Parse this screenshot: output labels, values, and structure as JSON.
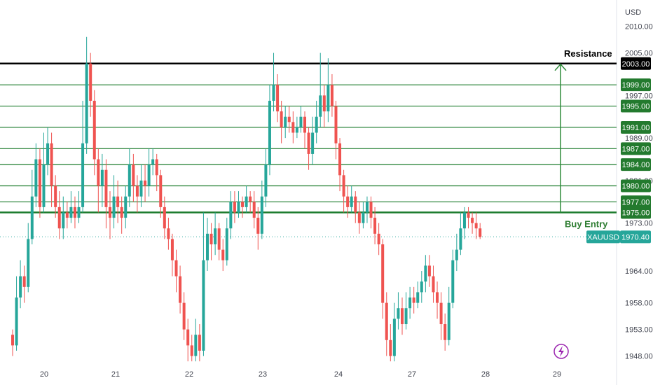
{
  "chart_data": {
    "type": "candlestick",
    "symbol": "XAUUSD",
    "currency": "USD",
    "last_price": "1970.40",
    "ylim": [
      1946.5,
      2011
    ],
    "y_ticks": [
      "2010.00",
      "2005.00",
      "1997.00",
      "1989.00",
      "1981.00",
      "1973.00",
      "1964.00",
      "1958.00",
      "1953.00",
      "1948.00"
    ],
    "x_ticks": [
      "20",
      "21",
      "22",
      "23",
      "24",
      "27",
      "28",
      "29"
    ],
    "resistance": {
      "label": "Resistance",
      "price": "2003.00",
      "value": 2003
    },
    "buy_entry": {
      "label": "Buy Entry",
      "price": "1975.00",
      "value": 1975
    },
    "target_levels": [
      {
        "price": "1999.00",
        "value": 1999
      },
      {
        "price": "1995.00",
        "value": 1995
      },
      {
        "price": "1991.00",
        "value": 1991
      },
      {
        "price": "1987.00",
        "value": 1987
      },
      {
        "price": "1984.00",
        "value": 1984
      },
      {
        "price": "1980.00",
        "value": 1980
      },
      {
        "price": "1977.00",
        "value": 1977
      }
    ],
    "colors": {
      "up": "#26a69a",
      "down": "#ef5350",
      "level": "#1b7b2c",
      "level_label": "#237a2e",
      "resistance": "#000000",
      "price_label": "#26a69a",
      "arrow": "#2e8b3a"
    },
    "candles": [
      [
        1952,
        1950,
        1953,
        1948
      ],
      [
        1950,
        1959,
        1963,
        1949
      ],
      [
        1959,
        1963,
        1966,
        1957
      ],
      [
        1963,
        1961,
        1965,
        1958
      ],
      [
        1961,
        1970,
        1973,
        1960
      ],
      [
        1970,
        1978,
        1983,
        1969
      ],
      [
        1978,
        1985,
        1988,
        1976
      ],
      [
        1985,
        1976,
        1987,
        1974
      ],
      [
        1976,
        1984,
        1990,
        1975
      ],
      [
        1984,
        1988,
        1991,
        1982
      ],
      [
        1988,
        1980,
        1990,
        1976
      ],
      [
        1980,
        1976,
        1982,
        1974
      ],
      [
        1976,
        1972,
        1979,
        1970
      ],
      [
        1972,
        1975,
        1978,
        1970
      ],
      [
        1975,
        1974,
        1977,
        1972
      ],
      [
        1974,
        1976,
        1979,
        1973
      ],
      [
        1976,
        1974,
        1978,
        1972
      ],
      [
        1974,
        1976,
        1979,
        1973
      ],
      [
        1976,
        1988,
        1996,
        1975
      ],
      [
        1988,
        2003,
        2008,
        1986
      ],
      [
        2003,
        1996,
        2005,
        1993
      ],
      [
        1996,
        1985,
        1998,
        1982
      ],
      [
        1985,
        1980,
        1987,
        1975
      ],
      [
        1980,
        1983,
        1986,
        1976
      ],
      [
        1983,
        1976,
        1985,
        1972
      ],
      [
        1976,
        1974,
        1979,
        1970
      ],
      [
        1974,
        1978,
        1982,
        1972
      ],
      [
        1978,
        1976,
        1981,
        1973
      ],
      [
        1976,
        1974,
        1978,
        1971
      ],
      [
        1974,
        1978,
        1980,
        1972
      ],
      [
        1978,
        1984,
        1987,
        1976
      ],
      [
        1984,
        1980,
        1986,
        1977
      ],
      [
        1980,
        1978,
        1982,
        1975
      ],
      [
        1978,
        1981,
        1984,
        1976
      ],
      [
        1981,
        1980,
        1984,
        1977
      ],
      [
        1980,
        1984,
        1987,
        1978
      ],
      [
        1984,
        1985,
        1987,
        1982
      ],
      [
        1985,
        1982,
        1986,
        1979
      ],
      [
        1982,
        1976,
        1983,
        1974
      ],
      [
        1976,
        1972,
        1978,
        1970
      ],
      [
        1972,
        1970,
        1974,
        1968
      ],
      [
        1970,
        1966,
        1971,
        1963
      ],
      [
        1966,
        1963,
        1968,
        1960
      ],
      [
        1963,
        1958,
        1965,
        1956
      ],
      [
        1958,
        1953,
        1960,
        1951
      ],
      [
        1953,
        1950,
        1955,
        1947
      ],
      [
        1950,
        1948,
        1952,
        1947
      ],
      [
        1948,
        1952,
        1955,
        1947
      ],
      [
        1952,
        1949,
        1954,
        1947
      ],
      [
        1949,
        1966,
        1975,
        1948
      ],
      [
        1966,
        1971,
        1974,
        1964
      ],
      [
        1971,
        1969,
        1973,
        1966
      ],
      [
        1969,
        1972,
        1975,
        1967
      ],
      [
        1972,
        1968,
        1973,
        1966
      ],
      [
        1968,
        1966,
        1970,
        1964
      ],
      [
        1966,
        1972,
        1974,
        1965
      ],
      [
        1972,
        1977,
        1979,
        1970
      ],
      [
        1977,
        1975,
        1979,
        1973
      ],
      [
        1975,
        1977,
        1979,
        1974
      ],
      [
        1977,
        1976,
        1978,
        1974
      ],
      [
        1976,
        1978,
        1980,
        1975
      ],
      [
        1978,
        1977,
        1979,
        1975
      ],
      [
        1977,
        1974,
        1979,
        1972
      ],
      [
        1974,
        1971,
        1976,
        1968
      ],
      [
        1971,
        1978,
        1981,
        1970
      ],
      [
        1978,
        1984,
        1987,
        1976
      ],
      [
        1984,
        1996,
        1999,
        1982
      ],
      [
        1996,
        1999,
        2005,
        1994
      ],
      [
        1999,
        1994,
        2001,
        1992
      ],
      [
        1994,
        1991,
        1996,
        1988
      ],
      [
        1991,
        1993,
        1995,
        1989
      ],
      [
        1993,
        1992,
        1995,
        1990
      ],
      [
        1992,
        1990,
        1994,
        1988
      ],
      [
        1990,
        1991,
        1993,
        1989
      ],
      [
        1991,
        1993,
        1995,
        1990
      ],
      [
        1993,
        1990,
        1994,
        1987
      ],
      [
        1990,
        1986,
        1991,
        1983
      ],
      [
        1986,
        1990,
        1993,
        1984
      ],
      [
        1990,
        1993,
        1996,
        1988
      ],
      [
        1993,
        1997,
        2005,
        1991
      ],
      [
        1997,
        1994,
        1999,
        1991
      ],
      [
        1994,
        1999,
        2004,
        1992
      ],
      [
        1999,
        1995,
        2001,
        1993
      ],
      [
        1995,
        1988,
        1996,
        1985
      ],
      [
        1988,
        1982,
        1989,
        1979
      ],
      [
        1982,
        1978,
        1983,
        1975
      ],
      [
        1978,
        1976,
        1980,
        1974
      ],
      [
        1976,
        1978,
        1980,
        1975
      ],
      [
        1978,
        1975,
        1979,
        1973
      ],
      [
        1975,
        1973,
        1977,
        1971
      ],
      [
        1973,
        1975,
        1977,
        1972
      ],
      [
        1975,
        1977,
        1978,
        1973
      ],
      [
        1977,
        1974,
        1978,
        1972
      ],
      [
        1974,
        1971,
        1976,
        1969
      ],
      [
        1971,
        1969,
        1973,
        1967
      ],
      [
        1969,
        1958,
        1970,
        1955
      ],
      [
        1958,
        1951,
        1960,
        1948
      ],
      [
        1951,
        1948,
        1954,
        1947
      ],
      [
        1948,
        1955,
        1958,
        1947
      ],
      [
        1955,
        1957,
        1960,
        1953
      ],
      [
        1957,
        1954,
        1959,
        1952
      ],
      [
        1954,
        1957,
        1960,
        1953
      ],
      [
        1957,
        1959,
        1961,
        1955
      ],
      [
        1959,
        1958,
        1961,
        1956
      ],
      [
        1958,
        1960,
        1962,
        1957
      ],
      [
        1960,
        1962,
        1964,
        1958
      ],
      [
        1962,
        1965,
        1967,
        1960
      ],
      [
        1965,
        1963,
        1967,
        1961
      ],
      [
        1963,
        1960,
        1965,
        1958
      ],
      [
        1960,
        1958,
        1962,
        1955
      ],
      [
        1958,
        1954,
        1960,
        1951
      ],
      [
        1954,
        1951,
        1956,
        1949
      ],
      [
        1951,
        1958,
        1961,
        1950
      ],
      [
        1958,
        1966,
        1968,
        1957
      ],
      [
        1966,
        1968,
        1971,
        1964
      ],
      [
        1968,
        1972,
        1975,
        1967
      ],
      [
        1972,
        1975,
        1976,
        1970
      ],
      [
        1975,
        1974,
        1976,
        1972
      ],
      [
        1974,
        1973,
        1975,
        1971
      ],
      [
        1973,
        1972,
        1975,
        1970
      ],
      [
        1972,
        1970.4,
        1973,
        1970
      ]
    ]
  }
}
